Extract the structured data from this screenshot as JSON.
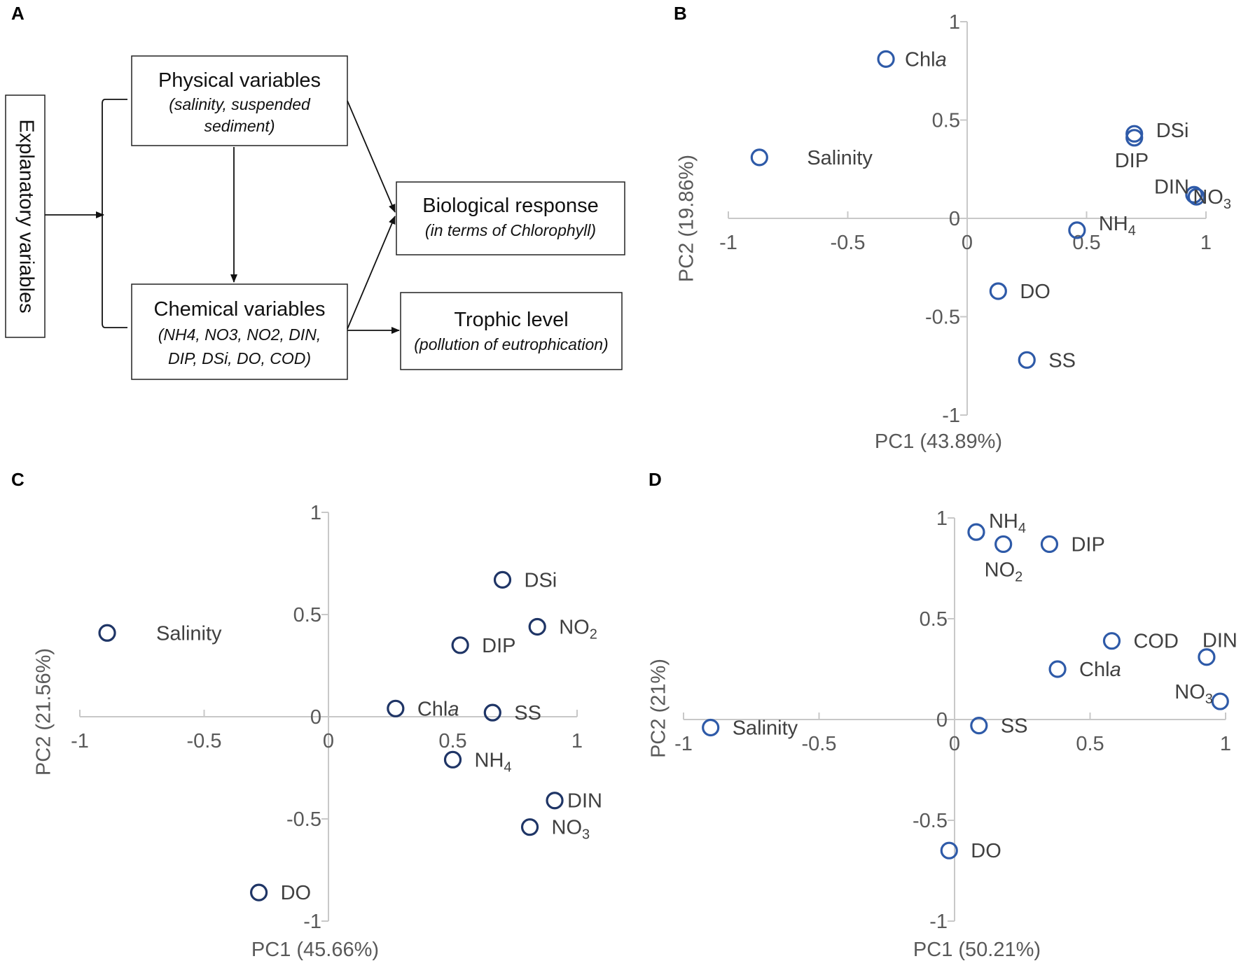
{
  "panel_letters": [
    "A",
    "B",
    "C",
    "D"
  ],
  "diagram": {
    "explanatory": "Explanatory variables",
    "physical": {
      "title": "Physical variables",
      "sub1": "(salinity, suspended",
      "sub2": "sediment)"
    },
    "chemical": {
      "title": "Chemical variables",
      "sub1": "(NH4, NO3, NO2, DIN,",
      "sub2": "DIP, DSi, DO, COD)"
    },
    "biological": {
      "title": "Biological response",
      "sub": "(in terms of Chlorophyll)"
    },
    "trophic": {
      "title": "Trophic level",
      "sub": "(pollution of eutrophication)"
    }
  },
  "colors": {
    "marker_B": "#2e5aa8",
    "marker_C": "#1f3566",
    "marker_D": "#2e5aa8",
    "axis": "#c8c8c8",
    "tick_text": "#595959"
  },
  "chart_data": [
    {
      "panel": "B",
      "type": "scatter",
      "xlabel": "PC1 (43.89%)",
      "ylabel": "PC2 (19.86%)",
      "xlim": [
        -1,
        1
      ],
      "ylim": [
        -1,
        1
      ],
      "xticks": [
        "-1",
        "-0.5",
        "0",
        "0.5",
        "1"
      ],
      "yticks": [
        "1",
        "0.5",
        "0",
        "-0.5",
        "-1"
      ],
      "points": [
        {
          "label": "Chla",
          "x": -0.34,
          "y": 0.81
        },
        {
          "label": "Salinity",
          "x": -0.87,
          "y": 0.31
        },
        {
          "label": "DSi",
          "x": 0.7,
          "y": 0.43
        },
        {
          "label": "DIP",
          "x": 0.7,
          "y": 0.41
        },
        {
          "label": "DIN",
          "x": 0.95,
          "y": 0.12
        },
        {
          "label": "NO3",
          "x": 0.96,
          "y": 0.11
        },
        {
          "label": "NH4",
          "x": 0.46,
          "y": -0.06
        },
        {
          "label": "DO",
          "x": 0.13,
          "y": -0.37
        },
        {
          "label": "SS",
          "x": 0.25,
          "y": -0.72
        }
      ]
    },
    {
      "panel": "C",
      "type": "scatter",
      "xlabel": "PC1 (45.66%)",
      "ylabel": "PC2 (21.56%)",
      "xlim": [
        -1,
        1
      ],
      "ylim": [
        -1,
        1
      ],
      "xticks": [
        "-1",
        "-0.5",
        "0",
        "0.5",
        "1"
      ],
      "yticks": [
        "1",
        "0.5",
        "0",
        "-0.5",
        "-1"
      ],
      "points": [
        {
          "label": "DSi",
          "x": 0.7,
          "y": 0.67
        },
        {
          "label": "Salinity",
          "x": -0.89,
          "y": 0.41
        },
        {
          "label": "NO2",
          "x": 0.84,
          "y": 0.44
        },
        {
          "label": "DIP",
          "x": 0.53,
          "y": 0.35
        },
        {
          "label": "Chla",
          "x": 0.27,
          "y": 0.04
        },
        {
          "label": "SS",
          "x": 0.66,
          "y": 0.02
        },
        {
          "label": "NH4",
          "x": 0.5,
          "y": -0.21
        },
        {
          "label": "DIN",
          "x": 0.91,
          "y": -0.41
        },
        {
          "label": "NO3",
          "x": 0.81,
          "y": -0.54
        },
        {
          "label": "DO",
          "x": -0.28,
          "y": -0.86
        }
      ]
    },
    {
      "panel": "D",
      "type": "scatter",
      "xlabel": "PC1 (50.21%)",
      "ylabel": "PC2 (21%)",
      "xlim": [
        -1,
        1
      ],
      "ylim": [
        -1,
        1
      ],
      "xticks": [
        "-1",
        "-0.5",
        "0",
        "0.5",
        "1"
      ],
      "yticks": [
        "1",
        "0.5",
        "0",
        "-0.5",
        "-1"
      ],
      "points": [
        {
          "label": "NH4",
          "x": 0.08,
          "y": 0.93
        },
        {
          "label": "NO2",
          "x": 0.18,
          "y": 0.87
        },
        {
          "label": "DIP",
          "x": 0.35,
          "y": 0.87
        },
        {
          "label": "COD",
          "x": 0.58,
          "y": 0.39
        },
        {
          "label": "DIN",
          "x": 0.93,
          "y": 0.31
        },
        {
          "label": "Chla",
          "x": 0.38,
          "y": 0.25
        },
        {
          "label": "NO3",
          "x": 0.98,
          "y": 0.09
        },
        {
          "label": "Salinity",
          "x": -0.9,
          "y": -0.04
        },
        {
          "label": "SS",
          "x": 0.09,
          "y": -0.03
        },
        {
          "label": "DO",
          "x": -0.02,
          "y": -0.65
        }
      ]
    }
  ]
}
